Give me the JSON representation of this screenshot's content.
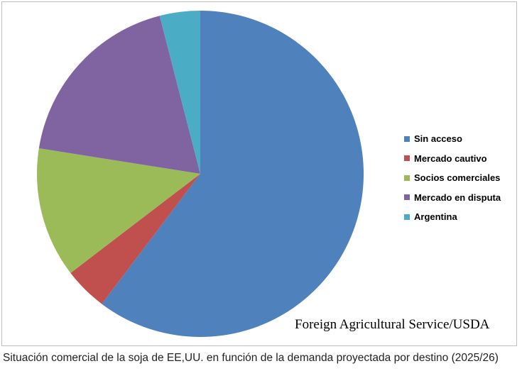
{
  "chart_data": {
    "type": "pie",
    "start_angle_deg": 0,
    "direction": "clockwise",
    "slices": [
      {
        "label": "Sin acceso",
        "value": 60.3,
        "color": "#4F81BD"
      },
      {
        "label": "Mercado cautivo",
        "value": 4.3,
        "color": "#C0504D"
      },
      {
        "label": "Socios comerciales",
        "value": 12.9,
        "color": "#9BBB59"
      },
      {
        "label": "Mercado en disputa",
        "value": 18.5,
        "color": "#8064A2"
      },
      {
        "label": "Argentina",
        "value": 4.0,
        "color": "#4BACC6"
      }
    ],
    "legend_position": "right",
    "source_note": "Foreign Agricultural Service/USDA"
  },
  "caption": "Situación comercial de la soja de EE,UU. en función de la demanda proyectada por destino (2025/26)"
}
